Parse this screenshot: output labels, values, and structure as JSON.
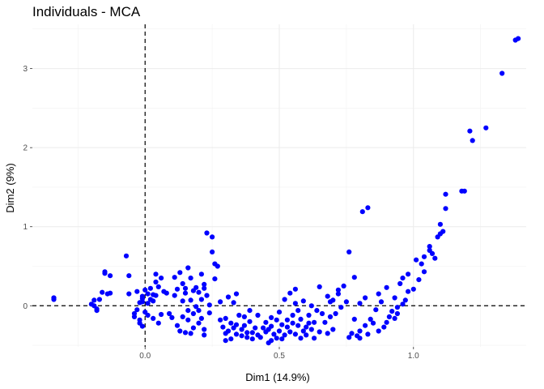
{
  "chart_data": {
    "type": "scatter",
    "title": "Individuals - MCA",
    "xlabel": "Dim1 (14.9%)",
    "ylabel": "Dim2 (9%)",
    "xlim": [
      -0.42,
      1.42
    ],
    "ylim": [
      -0.52,
      3.56
    ],
    "x_ticks": [
      0.0,
      0.5,
      1.0
    ],
    "x_tick_labels": [
      "0.0",
      "0.5",
      "1.0"
    ],
    "y_ticks": [
      0,
      1,
      2,
      3
    ],
    "y_tick_labels": [
      "0",
      "1",
      "2",
      "3"
    ],
    "grid": true,
    "reference_lines": {
      "x": 0,
      "y": 0,
      "style": "dashed"
    },
    "point_color": "#0000ff",
    "points": [
      [
        -0.34,
        0.1
      ],
      [
        -0.34,
        0.08
      ],
      [
        -0.2,
        0.02
      ],
      [
        -0.19,
        0.0
      ],
      [
        -0.19,
        0.07
      ],
      [
        -0.18,
        -0.04
      ],
      [
        -0.18,
        -0.06
      ],
      [
        -0.17,
        0.08
      ],
      [
        -0.16,
        0.17
      ],
      [
        -0.15,
        0.41
      ],
      [
        -0.15,
        0.43
      ],
      [
        -0.14,
        0.15
      ],
      [
        -0.13,
        0.38
      ],
      [
        -0.13,
        0.16
      ],
      [
        -0.07,
        0.63
      ],
      [
        -0.06,
        0.38
      ],
      [
        -0.06,
        0.15
      ],
      [
        -0.04,
        -0.1
      ],
      [
        -0.04,
        -0.14
      ],
      [
        -0.03,
        0.18
      ],
      [
        -0.03,
        -0.05
      ],
      [
        -0.02,
        0.04
      ],
      [
        -0.02,
        -0.18
      ],
      [
        -0.02,
        -0.22
      ],
      [
        -0.01,
        0.09
      ],
      [
        -0.01,
        0.05
      ],
      [
        -0.01,
        -0.26
      ],
      [
        -0.01,
        0.12
      ],
      [
        0.0,
        0.2
      ],
      [
        0.0,
        -0.08
      ],
      [
        0.01,
        0.15
      ],
      [
        0.01,
        0.03
      ],
      [
        0.01,
        -0.12
      ],
      [
        0.02,
        0.08
      ],
      [
        0.02,
        0.22
      ],
      [
        0.03,
        0.14
      ],
      [
        0.03,
        0.06
      ],
      [
        0.03,
        -0.16
      ],
      [
        0.04,
        0.4
      ],
      [
        0.04,
        0.3
      ],
      [
        0.04,
        0.13
      ],
      [
        0.05,
        -0.22
      ],
      [
        0.05,
        0.24
      ],
      [
        0.06,
        -0.11
      ],
      [
        0.06,
        0.35
      ],
      [
        0.07,
        0.18
      ],
      [
        0.08,
        0.16
      ],
      [
        0.09,
        -0.1
      ],
      [
        0.1,
        -0.15
      ],
      [
        0.11,
        0.13
      ],
      [
        0.11,
        0.36
      ],
      [
        0.12,
        0.21
      ],
      [
        0.12,
        -0.25
      ],
      [
        0.13,
        0.42
      ],
      [
        0.13,
        -0.32
      ],
      [
        0.14,
        -0.14
      ],
      [
        0.14,
        0.06
      ],
      [
        0.14,
        0.28
      ],
      [
        0.15,
        -0.34
      ],
      [
        0.15,
        0.16
      ],
      [
        0.15,
        0.22
      ],
      [
        0.16,
        0.48
      ],
      [
        0.16,
        -0.18
      ],
      [
        0.16,
        -0.06
      ],
      [
        0.17,
        -0.35
      ],
      [
        0.17,
        0.35
      ],
      [
        0.17,
        0.07
      ],
      [
        0.18,
        -0.28
      ],
      [
        0.18,
        -0.1
      ],
      [
        0.18,
        0.19
      ],
      [
        0.19,
        0.23
      ],
      [
        0.19,
        -0.01
      ],
      [
        0.2,
        -0.22
      ],
      [
        0.2,
        0.17
      ],
      [
        0.2,
        -0.06
      ],
      [
        0.21,
        0.4
      ],
      [
        0.21,
        -0.16
      ],
      [
        0.21,
        0.08
      ],
      [
        0.22,
        -0.3
      ],
      [
        0.22,
        -0.37
      ],
      [
        0.22,
        0.22
      ],
      [
        0.22,
        0.27
      ],
      [
        0.23,
        0.13
      ],
      [
        0.23,
        0.92
      ],
      [
        0.24,
        -0.09
      ],
      [
        0.24,
        0.01
      ],
      [
        0.25,
        0.87
      ],
      [
        0.25,
        0.68
      ],
      [
        0.26,
        0.53
      ],
      [
        0.26,
        0.34
      ],
      [
        0.27,
        0.5
      ],
      [
        0.28,
        -0.18
      ],
      [
        0.28,
        0.05
      ],
      [
        0.29,
        -0.27
      ],
      [
        0.3,
        -0.35
      ],
      [
        0.3,
        -0.16
      ],
      [
        0.3,
        -0.44
      ],
      [
        0.31,
        0.11
      ],
      [
        0.31,
        -0.32
      ],
      [
        0.32,
        -0.42
      ],
      [
        0.32,
        -0.22
      ],
      [
        0.33,
        -0.28
      ],
      [
        0.33,
        0.04
      ],
      [
        0.34,
        -0.36
      ],
      [
        0.34,
        -0.24
      ],
      [
        0.34,
        0.15
      ],
      [
        0.35,
        -0.12
      ],
      [
        0.36,
        -0.3
      ],
      [
        0.36,
        -0.38
      ],
      [
        0.37,
        -0.25
      ],
      [
        0.37,
        -0.14
      ],
      [
        0.38,
        -0.4
      ],
      [
        0.38,
        -0.34
      ],
      [
        0.39,
        -0.2
      ],
      [
        0.39,
        -0.06
      ],
      [
        0.4,
        -0.34
      ],
      [
        0.4,
        -0.42
      ],
      [
        0.41,
        -0.28
      ],
      [
        0.42,
        -0.37
      ],
      [
        0.42,
        -0.12
      ],
      [
        0.43,
        -0.4
      ],
      [
        0.44,
        -0.28
      ],
      [
        0.45,
        -0.33
      ],
      [
        0.45,
        -0.21
      ],
      [
        0.46,
        -0.47
      ],
      [
        0.46,
        -0.3
      ],
      [
        0.47,
        -0.26
      ],
      [
        0.47,
        -0.44
      ],
      [
        0.47,
        -0.15
      ],
      [
        0.48,
        -0.36
      ],
      [
        0.49,
        -0.41
      ],
      [
        0.49,
        -0.18
      ],
      [
        0.5,
        -0.32
      ],
      [
        0.5,
        -0.08
      ],
      [
        0.51,
        -0.24
      ],
      [
        0.51,
        -0.42
      ],
      [
        0.52,
        -0.37
      ],
      [
        0.52,
        0.08
      ],
      [
        0.53,
        -0.27
      ],
      [
        0.53,
        -0.18
      ],
      [
        0.54,
        0.16
      ],
      [
        0.54,
        -0.33
      ],
      [
        0.55,
        -0.12
      ],
      [
        0.55,
        -0.22
      ],
      [
        0.56,
        -0.36
      ],
      [
        0.56,
        0.03
      ],
      [
        0.56,
        0.21
      ],
      [
        0.57,
        -0.25
      ],
      [
        0.57,
        -0.06
      ],
      [
        0.58,
        -0.41
      ],
      [
        0.58,
        -0.17
      ],
      [
        0.59,
        -0.32
      ],
      [
        0.59,
        0.06
      ],
      [
        0.6,
        -0.27
      ],
      [
        0.6,
        -0.37
      ],
      [
        0.61,
        -0.12
      ],
      [
        0.61,
        -0.22
      ],
      [
        0.62,
        -0.3
      ],
      [
        0.62,
        0.0
      ],
      [
        0.63,
        -0.41
      ],
      [
        0.63,
        -0.21
      ],
      [
        0.64,
        -0.06
      ],
      [
        0.65,
        -0.33
      ],
      [
        0.65,
        0.24
      ],
      [
        0.66,
        -0.1
      ],
      [
        0.67,
        -0.21
      ],
      [
        0.68,
        0.12
      ],
      [
        0.68,
        -0.35
      ],
      [
        0.69,
        0.05
      ],
      [
        0.69,
        -0.14
      ],
      [
        0.7,
        0.07
      ],
      [
        0.7,
        -0.3
      ],
      [
        0.71,
        -0.1
      ],
      [
        0.72,
        0.15
      ],
      [
        0.72,
        0.2
      ],
      [
        0.73,
        -0.02
      ],
      [
        0.74,
        0.25
      ],
      [
        0.75,
        0.05
      ],
      [
        0.76,
        0.68
      ],
      [
        0.76,
        -0.4
      ],
      [
        0.77,
        -0.35
      ],
      [
        0.78,
        0.36
      ],
      [
        0.78,
        -0.17
      ],
      [
        0.79,
        -0.38
      ],
      [
        0.8,
        -0.32
      ],
      [
        0.8,
        -0.41
      ],
      [
        0.8,
        0.03
      ],
      [
        0.81,
        1.19
      ],
      [
        0.82,
        -0.25
      ],
      [
        0.82,
        0.1
      ],
      [
        0.83,
        -0.36
      ],
      [
        0.83,
        1.24
      ],
      [
        0.84,
        -0.17
      ],
      [
        0.85,
        -0.22
      ],
      [
        0.86,
        -0.05
      ],
      [
        0.87,
        -0.32
      ],
      [
        0.87,
        0.15
      ],
      [
        0.88,
        0.05
      ],
      [
        0.89,
        -0.27
      ],
      [
        0.9,
        -0.21
      ],
      [
        0.9,
        0.23
      ],
      [
        0.91,
        -0.14
      ],
      [
        0.92,
        -0.07
      ],
      [
        0.93,
        -0.16
      ],
      [
        0.93,
        0.1
      ],
      [
        0.94,
        -0.1
      ],
      [
        0.94,
        -0.02
      ],
      [
        0.95,
        0.28
      ],
      [
        0.96,
        0.02
      ],
      [
        0.96,
        0.35
      ],
      [
        0.97,
        0.07
      ],
      [
        0.98,
        0.18
      ],
      [
        0.98,
        0.4
      ],
      [
        1.0,
        0.21
      ],
      [
        1.01,
        0.58
      ],
      [
        1.02,
        0.33
      ],
      [
        1.03,
        0.53
      ],
      [
        1.04,
        0.43
      ],
      [
        1.04,
        0.62
      ],
      [
        1.06,
        0.75
      ],
      [
        1.06,
        0.7
      ],
      [
        1.07,
        0.66
      ],
      [
        1.08,
        0.6
      ],
      [
        1.09,
        0.87
      ],
      [
        1.1,
        1.03
      ],
      [
        1.1,
        0.91
      ],
      [
        1.11,
        0.94
      ],
      [
        1.12,
        1.23
      ],
      [
        1.12,
        1.41
      ],
      [
        1.18,
        1.45
      ],
      [
        1.19,
        1.45
      ],
      [
        1.21,
        2.21
      ],
      [
        1.22,
        2.09
      ],
      [
        1.27,
        2.25
      ],
      [
        1.33,
        2.94
      ],
      [
        1.38,
        3.36
      ],
      [
        1.39,
        3.38
      ]
    ]
  }
}
